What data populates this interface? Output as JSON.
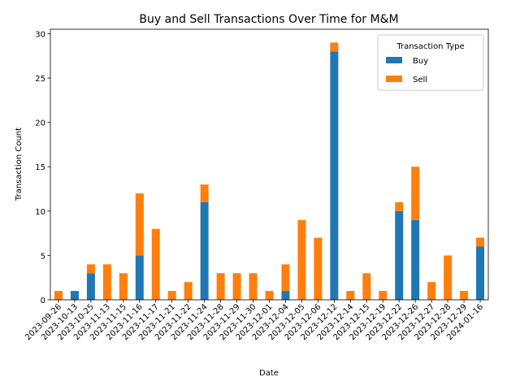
{
  "chart_data": {
    "type": "bar",
    "stacked": true,
    "title": "Buy and Sell Transactions Over Time for M&M",
    "xlabel": "Date",
    "ylabel": "Transaction Count",
    "ylim": [
      0,
      30.5
    ],
    "yticks": [
      0,
      5,
      10,
      15,
      20,
      25,
      30
    ],
    "categories": [
      "2023-09-26",
      "2023-10-13",
      "2023-10-25",
      "2023-11-13",
      "2023-11-15",
      "2023-11-16",
      "2023-11-17",
      "2023-11-21",
      "2023-11-22",
      "2023-11-24",
      "2023-11-28",
      "2023-11-29",
      "2023-11-30",
      "2023-12-01",
      "2023-12-04",
      "2023-12-05",
      "2023-12-06",
      "2023-12-12",
      "2023-12-14",
      "2023-12-15",
      "2023-12-19",
      "2023-12-22",
      "2023-12-26",
      "2023-12-27",
      "2023-12-28",
      "2023-12-29",
      "2024-01-16"
    ],
    "series": [
      {
        "name": "Buy",
        "color": "#1f77b4",
        "values": [
          0,
          1,
          3,
          0,
          0,
          5,
          0,
          0,
          0,
          11,
          0,
          0,
          0,
          0,
          1,
          0,
          0,
          28,
          0,
          0,
          0,
          10,
          9,
          0,
          0,
          0,
          6
        ]
      },
      {
        "name": "Sell",
        "color": "#ff7f0e",
        "values": [
          1,
          0,
          1,
          4,
          3,
          7,
          8,
          1,
          2,
          2,
          3,
          3,
          3,
          1,
          3,
          9,
          7,
          1,
          1,
          3,
          1,
          1,
          6,
          2,
          5,
          1,
          1
        ]
      }
    ],
    "legend": {
      "title": "Transaction Type",
      "position": "top-right"
    },
    "grid": false
  }
}
